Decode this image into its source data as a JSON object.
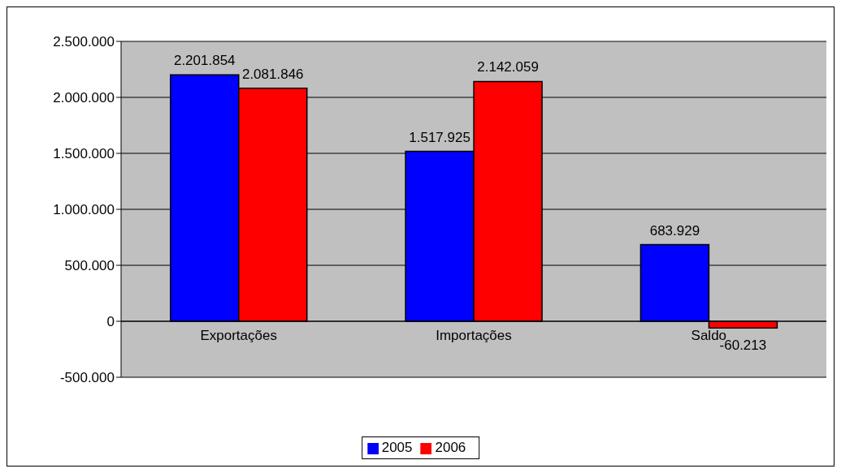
{
  "chart_data": {
    "type": "bar",
    "categories": [
      "Exportações",
      "Importações",
      "Saldo"
    ],
    "series": [
      {
        "name": "2005",
        "color": "#0000ff",
        "values": [
          2201854,
          1517925,
          683929
        ],
        "value_labels": [
          "2.201.854",
          "1.517.925",
          "683.929"
        ]
      },
      {
        "name": "2006",
        "color": "#ff0000",
        "values": [
          2081846,
          2142059,
          -60213
        ],
        "value_labels": [
          "2.081.846",
          "2.142.059",
          "-60.213"
        ]
      }
    ],
    "ylim": [
      -500000,
      2500000
    ],
    "yticks": [
      {
        "value": -500000,
        "label": "-500.000"
      },
      {
        "value": 0,
        "label": "0"
      },
      {
        "value": 500000,
        "label": "500.000"
      },
      {
        "value": 1000000,
        "label": "1.000.000"
      },
      {
        "value": 1500000,
        "label": "1.500.000"
      },
      {
        "value": 2000000,
        "label": "2.000.000"
      },
      {
        "value": 2500000,
        "label": "2.500.000"
      }
    ],
    "grid": "y",
    "legend": "bottom"
  }
}
